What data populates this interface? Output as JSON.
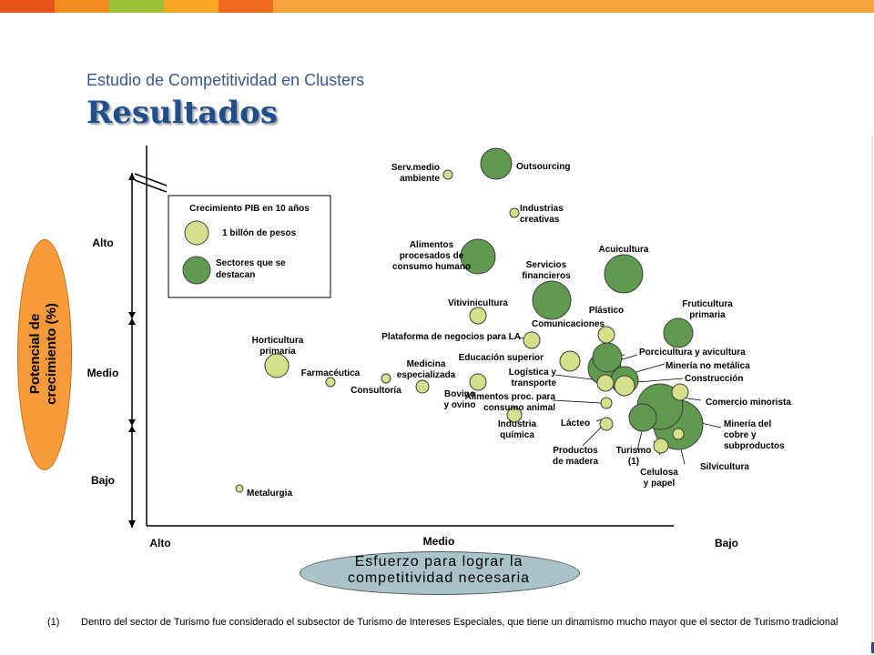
{
  "header": {
    "subtitle": "Estudio de Competitividad en Clusters",
    "title": "Resultados",
    "bar_colors": [
      "#e8541c",
      "#f28c1e",
      "#9fc13a",
      "#f6a623",
      "#ee6a1c",
      "#f4a23b"
    ]
  },
  "chart_data": {
    "type": "scatter",
    "y_axis_label": [
      "Potencial de",
      "crecimiento (%)"
    ],
    "x_axis_label": [
      "Esfuerzo para lograr la",
      "competitividad necesaria"
    ],
    "y_ticks": [
      "Alto",
      "Medio",
      "Bajo"
    ],
    "x_ticks": [
      "Alto",
      "Medio",
      "Bajo"
    ],
    "legend": {
      "title": "Crecimiento PIB en 10 años",
      "items": [
        {
          "label": "1 billón de pesos",
          "color": "#d6e08a"
        },
        {
          "label": "Sectores que se destacan",
          "color": "#5f9a4f"
        }
      ]
    },
    "colors": {
      "small": "#d6e08a",
      "highlight": "#5f9a4f"
    },
    "points": [
      {
        "name": "Outsourcing",
        "x": 545,
        "y": 180,
        "r": 17,
        "highlight": true
      },
      {
        "name": "Serv.medio ambiente",
        "x": 492,
        "y": 192,
        "r": 5,
        "highlight": false
      },
      {
        "name": "Industrias creativas",
        "x": 565,
        "y": 234,
        "r": 5,
        "highlight": false
      },
      {
        "name": "Alimentos procesados de consumo humano",
        "x": 525,
        "y": 282,
        "r": 19,
        "highlight": true
      },
      {
        "name": "Acuicultura",
        "x": 685,
        "y": 301,
        "r": 21,
        "highlight": true
      },
      {
        "name": "Servicios financieros",
        "x": 606,
        "y": 330,
        "r": 21,
        "highlight": true
      },
      {
        "name": "Vitivinicultura",
        "x": 525,
        "y": 347,
        "r": 9,
        "highlight": false
      },
      {
        "name": "Plástico",
        "x": 666,
        "y": 368,
        "r": 9,
        "highlight": false
      },
      {
        "name": "Fruticultura primaria",
        "x": 745,
        "y": 366,
        "r": 16,
        "highlight": true
      },
      {
        "name": "Plataforma de negocios para LA",
        "x": 584,
        "y": 374,
        "r": 9,
        "highlight": false
      },
      {
        "name": "Comunicaciones",
        "x": 667,
        "y": 393,
        "r": 16,
        "highlight": true
      },
      {
        "name": "Educación superior",
        "x": 626,
        "y": 397,
        "r": 11,
        "highlight": false
      },
      {
        "name": "Horticultura primaria",
        "x": 304,
        "y": 402,
        "r": 13,
        "highlight": false
      },
      {
        "name": "Porcicultura y avicultura",
        "x": 664,
        "y": 405,
        "r": 18,
        "highlight": true
      },
      {
        "name": "Minería no metálica",
        "x": 686,
        "y": 418,
        "r": 15,
        "highlight": true
      },
      {
        "name": "Farmacéutica",
        "x": 363,
        "y": 420,
        "r": 5,
        "highlight": false
      },
      {
        "name": "Consultoría",
        "x": 424,
        "y": 416,
        "r": 5,
        "highlight": false
      },
      {
        "name": "Logística y transporte",
        "x": 665,
        "y": 421,
        "r": 9,
        "highlight": false
      },
      {
        "name": "Construcción",
        "x": 686,
        "y": 424,
        "r": 11,
        "highlight": false
      },
      {
        "name": "Bovino y ovino",
        "x": 525,
        "y": 420,
        "r": 9,
        "highlight": false
      },
      {
        "name": "Medicina especializada",
        "x": 464,
        "y": 425,
        "r": 7,
        "highlight": false
      },
      {
        "name": "Alimentos proc. para consumo animal",
        "x": 666,
        "y": 443,
        "r": 6,
        "highlight": false
      },
      {
        "name": "Construcción (2)",
        "x": 747,
        "y": 431,
        "r": 9,
        "highlight": false
      },
      {
        "name": "Comercio minorista",
        "x": 725,
        "y": 447,
        "r": 25,
        "highlight": true
      },
      {
        "name": "Industria química",
        "x": 565,
        "y": 456,
        "r": 8,
        "highlight": false
      },
      {
        "name": "Lácteo",
        "x": 666,
        "y": 466,
        "r": 7,
        "highlight": false
      },
      {
        "name": "Turismo",
        "x": 706,
        "y": 459,
        "r": 15,
        "highlight": true
      },
      {
        "name": "Minería del cobre y subproductos",
        "x": 745,
        "y": 467,
        "r": 27,
        "highlight": true
      },
      {
        "name": "Silvicultura",
        "x": 745,
        "y": 477,
        "r": 6,
        "highlight": false
      },
      {
        "name": "Celulosa y papel",
        "x": 726,
        "y": 490,
        "r": 8,
        "highlight": false
      },
      {
        "name": "Metalurgia",
        "x": 263,
        "y": 537,
        "r": 4,
        "highlight": false
      }
    ],
    "labels": [
      {
        "lines": [
          "Outsourcing"
        ],
        "anchor": "start"
      },
      {
        "lines": [
          "Serv.medio",
          "ambiente"
        ],
        "anchor": "end"
      },
      {
        "lines": [
          "Industrias",
          "creativas"
        ],
        "anchor": "start"
      },
      {
        "lines": [
          "Alimentos",
          "procesados de",
          "consumo humano"
        ],
        "anchor": "middle"
      },
      {
        "lines": [
          "Acuicultura"
        ],
        "anchor": "middle"
      },
      {
        "lines": [
          "Servicios",
          "financieros"
        ],
        "anchor": "middle"
      },
      {
        "lines": [
          "Vitivinicultura"
        ],
        "anchor": "middle"
      },
      {
        "lines": [
          "Plástico"
        ],
        "anchor": "middle"
      },
      {
        "lines": [
          "Fruticultura",
          "primaria"
        ],
        "anchor": "middle"
      },
      {
        "lines": [
          "Comunicaciones"
        ],
        "anchor": "middle"
      },
      {
        "lines": [
          "Plataforma de negocios para LA"
        ],
        "anchor": "end"
      },
      {
        "lines": [
          "Educación superior"
        ],
        "anchor": "end"
      },
      {
        "lines": [
          "Horticultura",
          "primaria"
        ],
        "anchor": "middle"
      },
      {
        "lines": [
          "Porcicultura y avicultura"
        ],
        "anchor": "start"
      },
      {
        "lines": [
          "Minería no metálica"
        ],
        "anchor": "start"
      },
      {
        "lines": [
          "Farmacéutica"
        ],
        "anchor": "middle"
      },
      {
        "lines": [
          "Consultoría"
        ],
        "anchor": "middle"
      },
      {
        "lines": [
          "Medicina",
          "especializada"
        ],
        "anchor": "middle"
      },
      {
        "lines": [
          "Logística y",
          "transporte"
        ],
        "anchor": "end"
      },
      {
        "lines": [
          "Construcción"
        ],
        "anchor": "start"
      },
      {
        "lines": [
          "Bovino",
          "y ovino"
        ],
        "anchor": "middle"
      },
      {
        "lines": [
          "Alimentos proc. para",
          "consumo animal"
        ],
        "anchor": "end"
      },
      {
        "lines": [
          "Comercio minorista"
        ],
        "anchor": "start"
      },
      {
        "lines": [
          "Industria",
          "química"
        ],
        "anchor": "middle"
      },
      {
        "lines": [
          "Lácteo"
        ],
        "anchor": "middle"
      },
      {
        "lines": [
          "Minería del",
          "cobre y",
          "subproductos"
        ],
        "anchor": "start"
      },
      {
        "lines": [
          "Productos",
          "de madera"
        ],
        "anchor": "middle"
      },
      {
        "lines": [
          "Turismo",
          "(1)"
        ],
        "anchor": "middle"
      },
      {
        "lines": [
          "Silvicultura"
        ],
        "anchor": "start"
      },
      {
        "lines": [
          "Celulosa",
          "y papel"
        ],
        "anchor": "middle"
      },
      {
        "lines": [
          "Metalurgia"
        ],
        "anchor": "start"
      }
    ]
  },
  "footnote": {
    "number": "(1)",
    "text": "Dentro del sector de Turismo fue considerado el subsector de Turismo de Intereses Especiales, que tiene un dinamismo mucho mayor que el sector de Turismo tradicional"
  }
}
